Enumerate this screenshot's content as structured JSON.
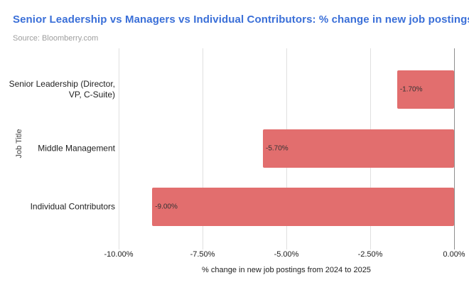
{
  "header": {
    "title": "Senior Leadership vs Managers vs Individual Contributors: % change in new job postings",
    "source": "Source: Bloomberry.com"
  },
  "chart_data": {
    "type": "bar",
    "orientation": "horizontal",
    "title": "Senior Leadership vs Managers vs Individual Contributors: % change in new job postings",
    "source": "Source: Bloomberry.com",
    "categories": [
      "Senior Leadership (Director, VP, C-Suite)",
      "Middle Management",
      "Individual Contributors"
    ],
    "category_label_lines": [
      [
        "Senior Leadership (Director,",
        "VP, C-Suite)"
      ],
      [
        "Middle Management"
      ],
      [
        "Individual Contributors"
      ]
    ],
    "values": [
      -1.7,
      -5.7,
      -9.0
    ],
    "value_labels": [
      "-1.70%",
      "-5.70%",
      "-9.00%"
    ],
    "xlabel": "% change in new job postings from 2024 to 2025",
    "ylabel": "Job Title",
    "xlim": [
      -10,
      0
    ],
    "x_ticks": [
      -10,
      -7.5,
      -5,
      -2.5,
      0
    ],
    "x_tick_labels": [
      "-10.00%",
      "-7.50%",
      "-5.00%",
      "-2.50%",
      "0.00%"
    ],
    "grid": true,
    "legend": false,
    "colors": {
      "bar": "#e26e6e",
      "bar_label_text": "#333333",
      "title": "#3a6fd8",
      "source_text": "#9e9e9e",
      "axis_text": "#212121",
      "gridline": "#e0e0e0",
      "zero_line": "#8f8f8f"
    }
  }
}
